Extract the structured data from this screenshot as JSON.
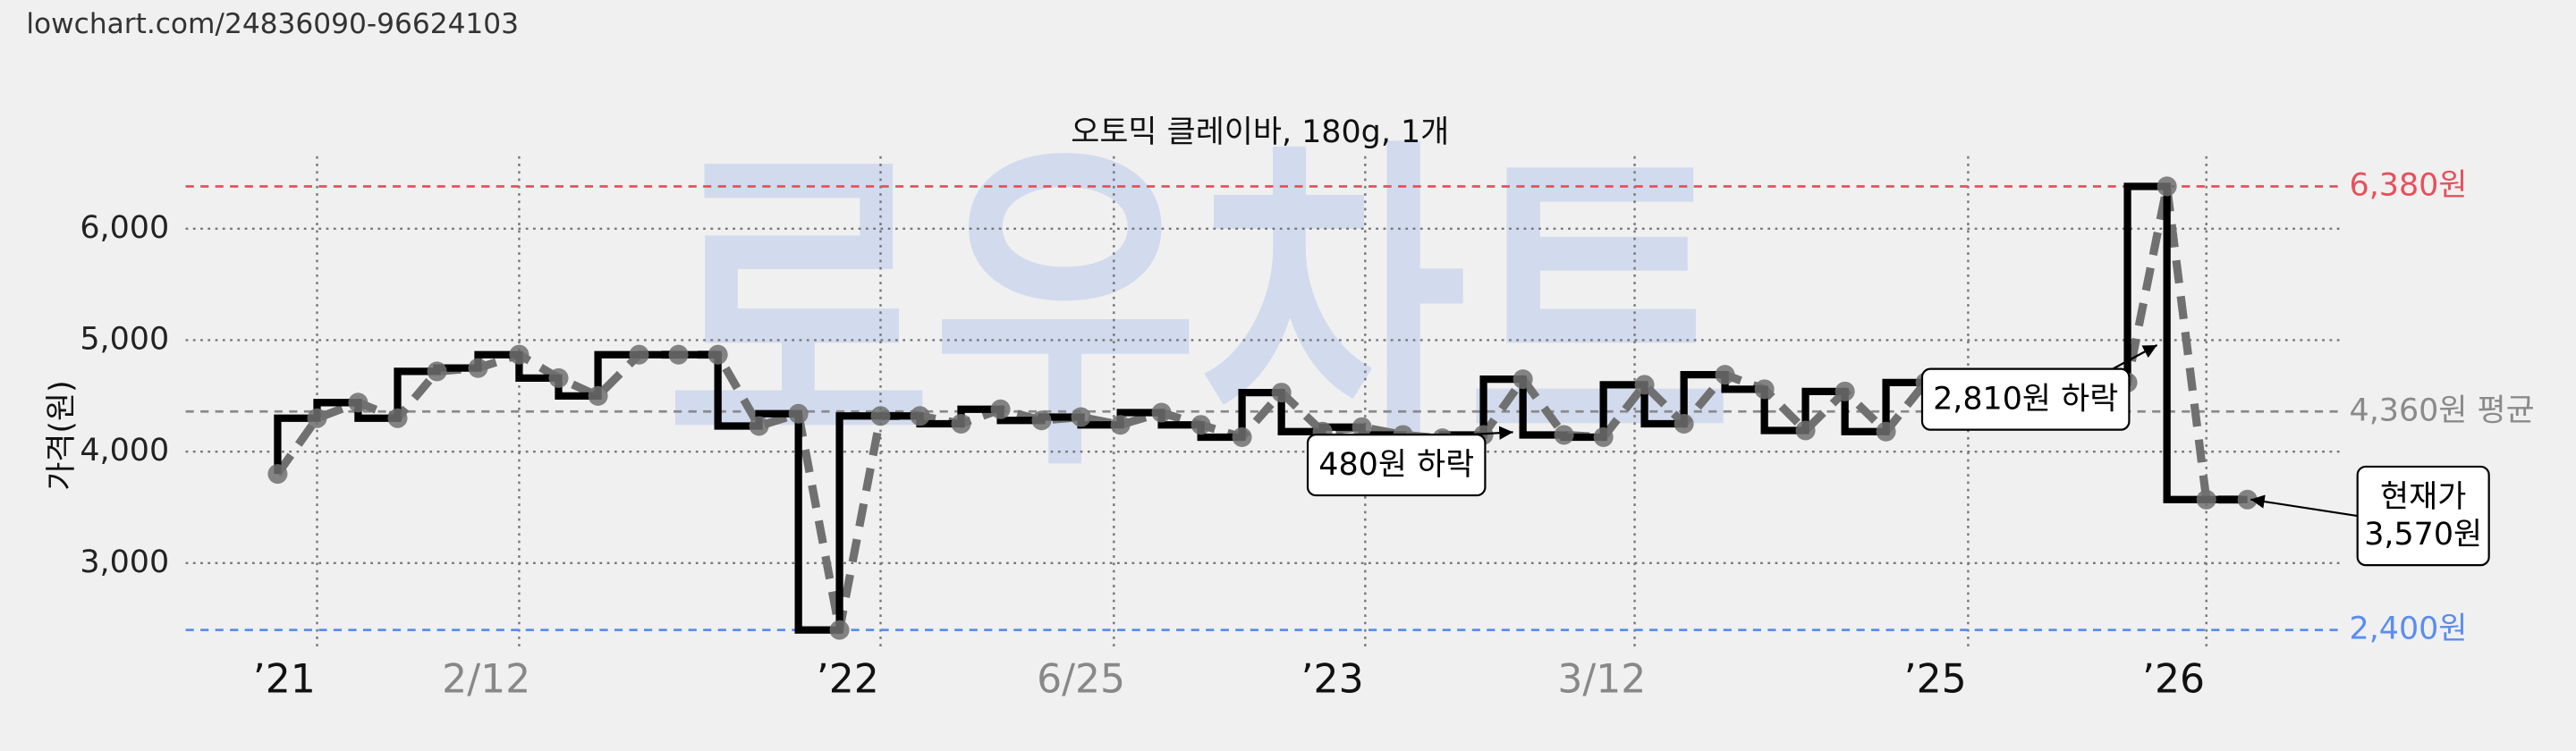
{
  "source_url": "lowchart.com/24836090-96624103",
  "watermark": "로우차트",
  "chart_data": {
    "type": "step",
    "title": "오토믹 클레이바, 180g, 1개",
    "y_label": "가격(원)",
    "x": [
      56,
      80,
      105,
      129,
      153,
      178,
      203,
      227,
      251,
      276,
      300,
      324,
      349,
      373,
      398,
      423,
      447,
      472,
      496,
      521,
      545,
      569,
      594,
      618,
      643,
      667,
      692,
      716,
      741,
      765,
      790,
      814,
      839,
      863,
      888,
      912,
      937,
      961,
      986,
      1010,
      1035,
      1059,
      1182,
      1206,
      1230,
      1255
    ],
    "series": [
      {
        "color": "#000000",
        "trend_color": "#707070",
        "values": [
          3800,
          4300,
          4440,
          4300,
          4720,
          4750,
          4870,
          4660,
          4500,
          4870,
          4870,
          4870,
          4230,
          4340,
          2400,
          4320,
          4320,
          4250,
          4380,
          4280,
          4310,
          4240,
          4350,
          4240,
          4130,
          4530,
          4180,
          4220,
          4150,
          4120,
          4150,
          4650,
          4150,
          4130,
          4600,
          4250,
          4690,
          4560,
          4190,
          4540,
          4180,
          4620,
          4620,
          6380,
          3570,
          3570
        ]
      }
    ],
    "xlim": [
      0,
      1312
    ],
    "ylim": [
      2230,
      6650
    ],
    "xticks": [
      {
        "value": 80,
        "label": "’21"
      },
      {
        "value": 203,
        "label": "2/12"
      },
      {
        "value": 423,
        "label": "’22"
      },
      {
        "value": 565,
        "label": "6/25"
      },
      {
        "value": 718,
        "label": "’23"
      },
      {
        "value": 882,
        "label": "3/12"
      },
      {
        "value": 1085,
        "label": "’25"
      },
      {
        "value": 1230,
        "label": "’26"
      }
    ],
    "yticks": [
      {
        "value": 3000,
        "label": "3,000"
      },
      {
        "value": 4000,
        "label": "4,000"
      },
      {
        "value": 5000,
        "label": "5,000"
      },
      {
        "value": 6000,
        "label": "6,000"
      }
    ],
    "grid": true,
    "reference_lines": [
      {
        "value": 6380,
        "label": "6,380원",
        "color": "#e8505b"
      },
      {
        "value": 4360,
        "label": "4,360원 평균",
        "color": "#8a8a8a"
      },
      {
        "value": 2400,
        "label": "2,400원",
        "color": "#5b8def"
      }
    ],
    "annotations": [
      {
        "lines": [
          "480원 하락"
        ]
      },
      {
        "lines": [
          "2,810원 하락"
        ]
      },
      {
        "lines": [
          "현재가",
          "3,570원"
        ]
      }
    ]
  }
}
